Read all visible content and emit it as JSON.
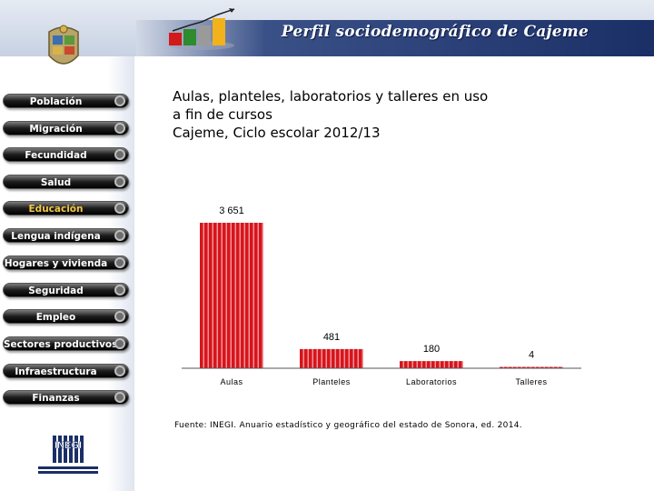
{
  "header": {
    "title": "Perfil sociodemográfico de Cajeme"
  },
  "sidebar": {
    "items": [
      {
        "label": "Población",
        "active": false
      },
      {
        "label": "Migración",
        "active": false
      },
      {
        "label": "Fecundidad",
        "active": false
      },
      {
        "label": "Salud",
        "active": false
      },
      {
        "label": "Educación",
        "active": true
      },
      {
        "label": "Lengua indígena",
        "active": false
      },
      {
        "label": "Hogares y vivienda",
        "active": false
      },
      {
        "label": "Seguridad",
        "active": false
      },
      {
        "label": "Empleo",
        "active": false
      },
      {
        "label": "Sectores productivos",
        "active": false
      },
      {
        "label": "Infraestructura",
        "active": false
      },
      {
        "label": "Finanzas",
        "active": false
      }
    ],
    "inegi_logo_text": "INEGI"
  },
  "colors": {
    "bar": "#d8141c",
    "bar_stripe": "#f3b3b6",
    "header_dark": "#1a2f66",
    "active_menu": "#f2c744"
  },
  "chart_data": {
    "type": "bar",
    "title": "Aulas, planteles, laboratorios y talleres en uso\na fin de cursos\nCajeme, Ciclo escolar 2012/13",
    "categories": [
      "Aulas",
      "Planteles",
      "Laboratorios",
      "Talleres"
    ],
    "values": [
      3651,
      481,
      180,
      4
    ],
    "data_labels": [
      "3 651",
      "481",
      "180",
      "4"
    ],
    "xlabel": "",
    "ylabel": "",
    "ylim": [
      0,
      3651
    ],
    "grid": false,
    "legend": "none"
  },
  "source": "Fuente: INEGI. Anuario estadístico y geográfico del estado de Sonora, ed. 2014."
}
